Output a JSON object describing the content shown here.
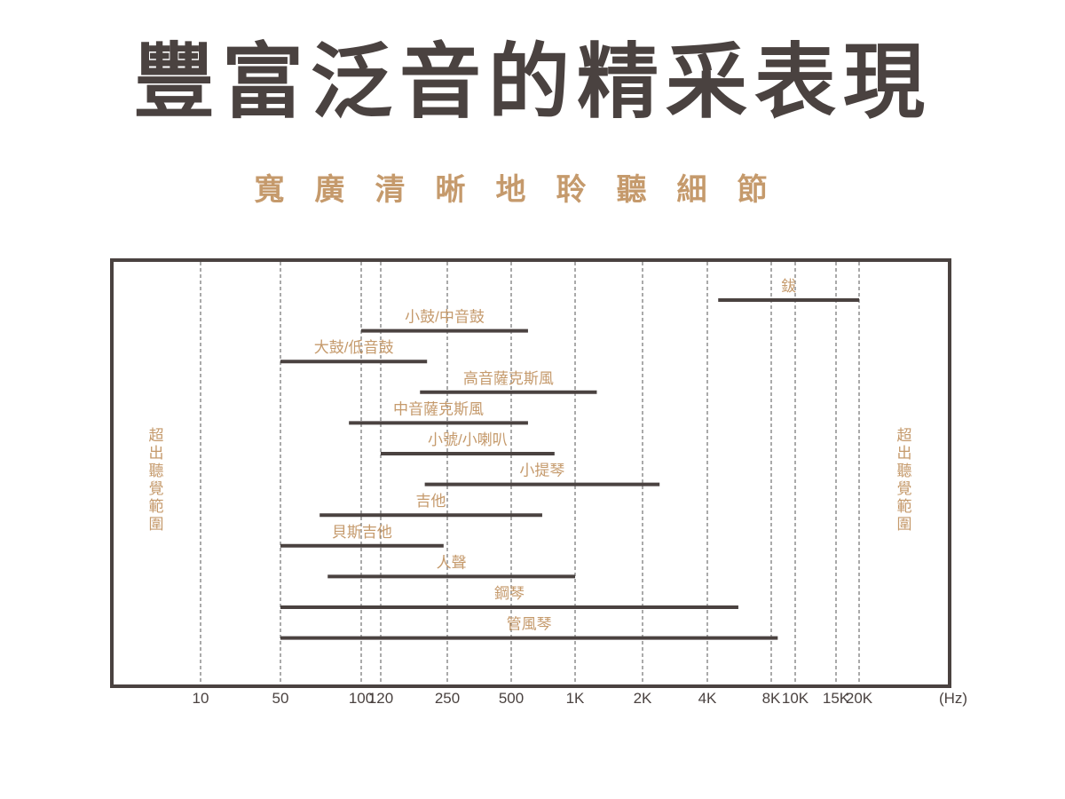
{
  "title": "豐富泛音的精采表現",
  "subtitle": "寬廣清晰地聆聽細節",
  "colors": {
    "dark": "#4a4240",
    "accent": "#c59a6c",
    "grid": "#555555"
  },
  "chart_data": {
    "type": "bar",
    "orientation": "horizontal-range",
    "x_scale": "log",
    "xlim": [
      5,
      40000
    ],
    "x_unit_label": "(Hz)",
    "x_ticks": [
      {
        "value": 10,
        "label": "10"
      },
      {
        "value": 50,
        "label": "50"
      },
      {
        "value": 100,
        "label": "100"
      },
      {
        "value": 120,
        "label": "120"
      },
      {
        "value": 250,
        "label": "250"
      },
      {
        "value": 500,
        "label": "500"
      },
      {
        "value": 1000,
        "label": "1K"
      },
      {
        "value": 2000,
        "label": "2K"
      },
      {
        "value": 4000,
        "label": "4K"
      },
      {
        "value": 8000,
        "label": "8K"
      },
      {
        "value": 10000,
        "label": "10K"
      },
      {
        "value": 15000,
        "label": "15K"
      },
      {
        "value": 20000,
        "label": "20K"
      }
    ],
    "side_labels": {
      "left": "超出聽覺範圍",
      "right": "超出聽覺範圍"
    },
    "grid": true,
    "series": [
      {
        "name": "鈸",
        "low": 4500,
        "high": 20000
      },
      {
        "name": "小鼓/中音鼓",
        "low": 100,
        "high": 600
      },
      {
        "name": "大鼓/低音鼓",
        "low": 50,
        "high": 200
      },
      {
        "name": "高音薩克斯風",
        "low": 185,
        "high": 1250
      },
      {
        "name": "中音薩克斯風",
        "low": 90,
        "high": 600
      },
      {
        "name": "小號/小喇叭",
        "low": 120,
        "high": 800
      },
      {
        "name": "小提琴",
        "low": 195,
        "high": 2400
      },
      {
        "name": "吉他",
        "low": 70,
        "high": 700
      },
      {
        "name": "貝斯吉他",
        "low": 50,
        "high": 240
      },
      {
        "name": "人聲",
        "low": 75,
        "high": 1000
      },
      {
        "name": "鋼琴",
        "low": 50,
        "high": 5600
      },
      {
        "name": "管風琴",
        "low": 50,
        "high": 8500
      }
    ]
  }
}
